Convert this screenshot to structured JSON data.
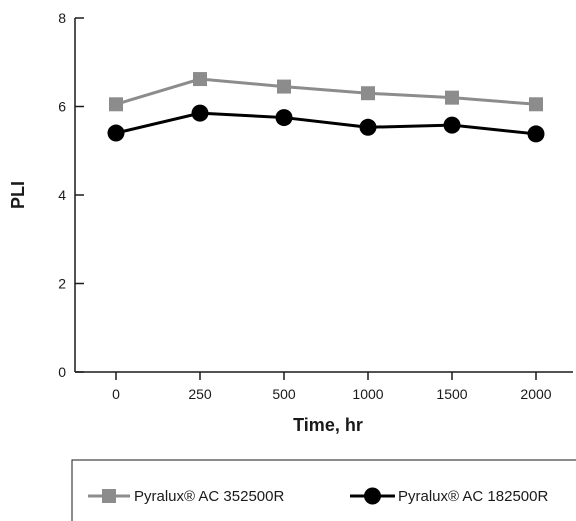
{
  "chart_data": {
    "type": "line",
    "title": "",
    "xlabel": "Time, hr",
    "ylabel": "PLI",
    "categories": [
      "0",
      "250",
      "500",
      "1000",
      "1500",
      "2000"
    ],
    "ylim": [
      0,
      8
    ],
    "yticks": [
      0,
      2,
      4,
      6,
      8
    ],
    "grid": false,
    "legend_position": "bottom",
    "series": [
      {
        "name": "Pyralux® AC 352500R",
        "marker": "square",
        "color": "#8c8c8c",
        "values": [
          6.05,
          6.62,
          6.45,
          6.3,
          6.2,
          6.05
        ]
      },
      {
        "name": "Pyralux® AC 182500R",
        "marker": "circle",
        "color": "#000000",
        "values": [
          5.4,
          5.85,
          5.75,
          5.53,
          5.58,
          5.38
        ]
      }
    ]
  }
}
